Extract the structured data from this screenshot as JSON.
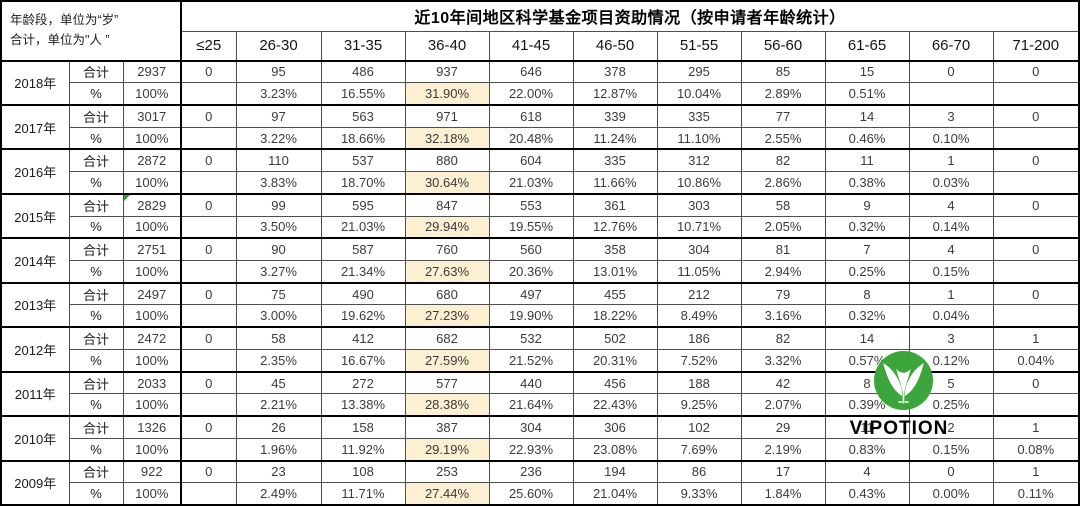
{
  "header": {
    "corner_line1": "年龄段，单位为“岁”",
    "corner_line2": "合计，单位为\"人 ”",
    "title": "近10年间地区科学基金项目资助情况（按申请者年龄统计）",
    "age_columns": [
      "≤25",
      "26-30",
      "31-35",
      "36-40",
      "41-45",
      "46-50",
      "51-55",
      "56-60",
      "61-65",
      "66-70",
      "71-200"
    ]
  },
  "row_labels": {
    "total": "合计",
    "percent": "%",
    "total_percent": "100%"
  },
  "highlight_column": "36-40",
  "colors": {
    "highlight_bg": "#FCEFD2",
    "grid_thin": "#4F4F4F",
    "grid_thick": "#000000",
    "logo_green": "#3CA53C",
    "error_marker_green": "#31A230",
    "watermark_text": "#000000"
  },
  "watermark": {
    "text": "VIPOTION",
    "logo_icon": "leaf-w-logo"
  },
  "years": [
    {
      "year": "2018年",
      "total": "2937",
      "error_marker": false,
      "counts": [
        "0",
        "95",
        "486",
        "937",
        "646",
        "378",
        "295",
        "85",
        "15",
        "0",
        "0"
      ],
      "percents": [
        "",
        "3.23%",
        "16.55%",
        "31.90%",
        "22.00%",
        "12.87%",
        "10.04%",
        "2.89%",
        "0.51%",
        "",
        ""
      ]
    },
    {
      "year": "2017年",
      "total": "3017",
      "error_marker": false,
      "counts": [
        "0",
        "97",
        "563",
        "971",
        "618",
        "339",
        "335",
        "77",
        "14",
        "3",
        "0"
      ],
      "percents": [
        "",
        "3.22%",
        "18.66%",
        "32.18%",
        "20.48%",
        "11.24%",
        "11.10%",
        "2.55%",
        "0.46%",
        "0.10%",
        ""
      ]
    },
    {
      "year": "2016年",
      "total": "2872",
      "error_marker": false,
      "counts": [
        "0",
        "110",
        "537",
        "880",
        "604",
        "335",
        "312",
        "82",
        "11",
        "1",
        "0"
      ],
      "percents": [
        "",
        "3.83%",
        "18.70%",
        "30.64%",
        "21.03%",
        "11.66%",
        "10.86%",
        "2.86%",
        "0.38%",
        "0.03%",
        ""
      ]
    },
    {
      "year": "2015年",
      "total": "2829",
      "error_marker": true,
      "counts": [
        "0",
        "99",
        "595",
        "847",
        "553",
        "361",
        "303",
        "58",
        "9",
        "4",
        "0"
      ],
      "percents": [
        "",
        "3.50%",
        "21.03%",
        "29.94%",
        "19.55%",
        "12.76%",
        "10.71%",
        "2.05%",
        "0.32%",
        "0.14%",
        ""
      ]
    },
    {
      "year": "2014年",
      "total": "2751",
      "error_marker": false,
      "counts": [
        "0",
        "90",
        "587",
        "760",
        "560",
        "358",
        "304",
        "81",
        "7",
        "4",
        "0"
      ],
      "percents": [
        "",
        "3.27%",
        "21.34%",
        "27.63%",
        "20.36%",
        "13.01%",
        "11.05%",
        "2.94%",
        "0.25%",
        "0.15%",
        ""
      ]
    },
    {
      "year": "2013年",
      "total": "2497",
      "error_marker": false,
      "counts": [
        "0",
        "75",
        "490",
        "680",
        "497",
        "455",
        "212",
        "79",
        "8",
        "1",
        "0"
      ],
      "percents": [
        "",
        "3.00%",
        "19.62%",
        "27.23%",
        "19.90%",
        "18.22%",
        "8.49%",
        "3.16%",
        "0.32%",
        "0.04%",
        ""
      ]
    },
    {
      "year": "2012年",
      "total": "2472",
      "error_marker": false,
      "counts": [
        "0",
        "58",
        "412",
        "682",
        "532",
        "502",
        "186",
        "82",
        "14",
        "3",
        "1"
      ],
      "percents": [
        "",
        "2.35%",
        "16.67%",
        "27.59%",
        "21.52%",
        "20.31%",
        "7.52%",
        "3.32%",
        "0.57%",
        "0.12%",
        "0.04%"
      ]
    },
    {
      "year": "2011年",
      "total": "2033",
      "error_marker": false,
      "counts": [
        "0",
        "45",
        "272",
        "577",
        "440",
        "456",
        "188",
        "42",
        "8",
        "5",
        "0"
      ],
      "percents": [
        "",
        "2.21%",
        "13.38%",
        "28.38%",
        "21.64%",
        "22.43%",
        "9.25%",
        "2.07%",
        "0.39%",
        "0.25%",
        ""
      ]
    },
    {
      "year": "2010年",
      "total": "1326",
      "error_marker": false,
      "counts": [
        "0",
        "26",
        "158",
        "387",
        "304",
        "306",
        "102",
        "29",
        "11",
        "2",
        "1"
      ],
      "percents": [
        "",
        "1.96%",
        "11.92%",
        "29.19%",
        "22.93%",
        "23.08%",
        "7.69%",
        "2.19%",
        "0.83%",
        "0.15%",
        "0.08%"
      ]
    },
    {
      "year": "2009年",
      "total": "922",
      "error_marker": false,
      "counts": [
        "0",
        "23",
        "108",
        "253",
        "236",
        "194",
        "86",
        "17",
        "4",
        "0",
        "1"
      ],
      "percents": [
        "",
        "2.49%",
        "11.71%",
        "27.44%",
        "25.60%",
        "21.04%",
        "9.33%",
        "1.84%",
        "0.43%",
        "0.00%",
        "0.11%"
      ]
    }
  ]
}
